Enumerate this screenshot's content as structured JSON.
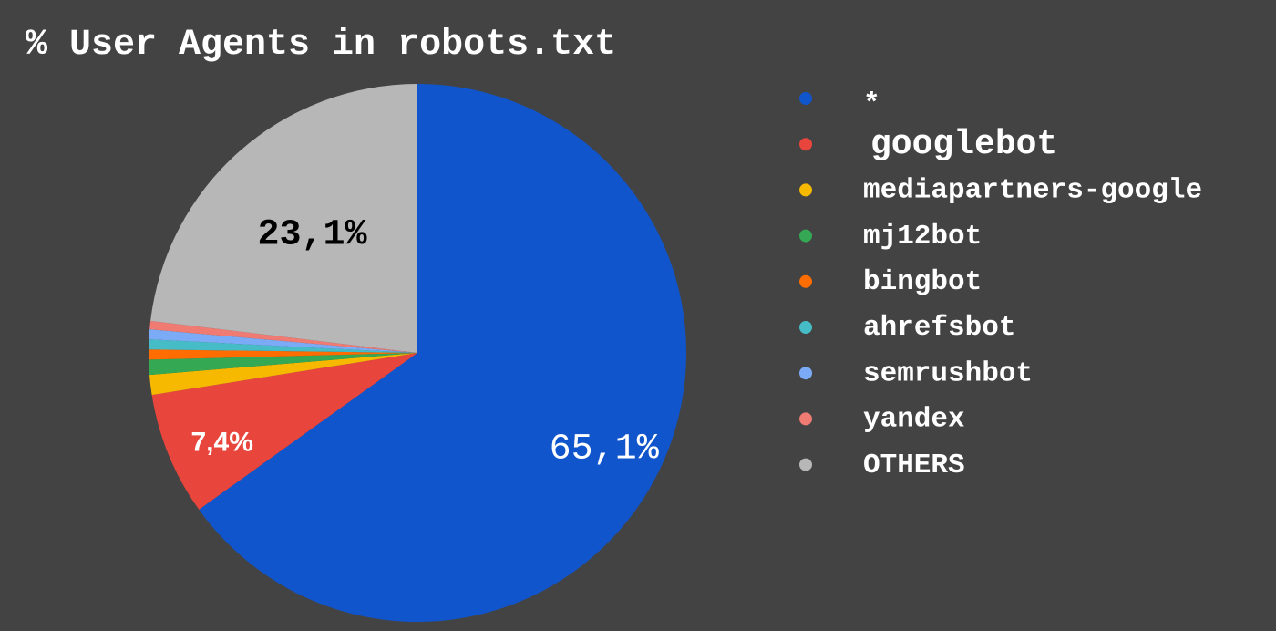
{
  "chart_data": {
    "type": "pie",
    "title": "% User Agents in robots.txt",
    "legend_position": "right",
    "slices": [
      {
        "name": "*",
        "value": 65.1,
        "color": "#1155cc",
        "label": "65,1%",
        "label_color": "#ffffff"
      },
      {
        "name": "googlebot",
        "value": 7.4,
        "color": "#e8453c",
        "label": "7,4%",
        "label_color": "#ffffff"
      },
      {
        "name": "mediapartners-google",
        "value": 1.2,
        "color": "#f6b900",
        "label": "",
        "label_color": "#ffffff"
      },
      {
        "name": "mj12bot",
        "value": 0.9,
        "color": "#34a853",
        "label": "",
        "label_color": "#ffffff"
      },
      {
        "name": "bingbot",
        "value": 0.6,
        "color": "#ff6d01",
        "label": "",
        "label_color": "#ffffff"
      },
      {
        "name": "ahrefsbot",
        "value": 0.6,
        "color": "#46bdc6",
        "label": "",
        "label_color": "#ffffff"
      },
      {
        "name": "semrushbot",
        "value": 0.6,
        "color": "#7baaf7",
        "label": "",
        "label_color": "#ffffff"
      },
      {
        "name": "yandex",
        "value": 0.5,
        "color": "#f07b72",
        "label": "",
        "label_color": "#ffffff"
      },
      {
        "name": "OTHERS",
        "value": 23.1,
        "color": "#b7b7b7",
        "label": "23,1%",
        "label_color": "#000000"
      }
    ]
  }
}
